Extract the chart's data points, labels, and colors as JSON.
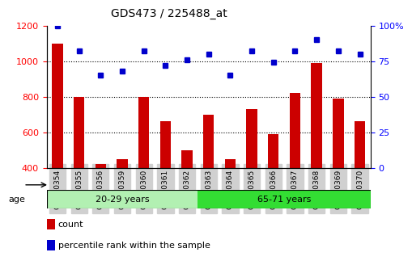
{
  "title": "GDS473 / 225488_at",
  "categories": [
    "GSM10354",
    "GSM10355",
    "GSM10356",
    "GSM10359",
    "GSM10360",
    "GSM10361",
    "GSM10362",
    "GSM10363",
    "GSM10364",
    "GSM10365",
    "GSM10366",
    "GSM10367",
    "GSM10368",
    "GSM10369",
    "GSM10370"
  ],
  "counts": [
    1100,
    800,
    420,
    450,
    800,
    660,
    500,
    700,
    450,
    730,
    590,
    820,
    990,
    790,
    660
  ],
  "percentiles": [
    100,
    82,
    65,
    68,
    82,
    72,
    76,
    80,
    65,
    82,
    74,
    82,
    90,
    82,
    80
  ],
  "group1_label": "20-29 years",
  "group2_label": "65-71 years",
  "group1_count": 7,
  "group2_count": 8,
  "ylim_left": [
    400,
    1200
  ],
  "ylim_right": [
    0,
    100
  ],
  "yticks_left": [
    400,
    600,
    800,
    1000,
    1200
  ],
  "yticks_right": [
    0,
    25,
    50,
    75,
    100
  ],
  "bar_color": "#cc0000",
  "dot_color": "#0000cc",
  "group1_bg": "#b2f0b2",
  "group2_bg": "#33dd33",
  "label_bg": "#d0d0d0",
  "legend_count": "count",
  "legend_pct": "percentile rank within the sample"
}
